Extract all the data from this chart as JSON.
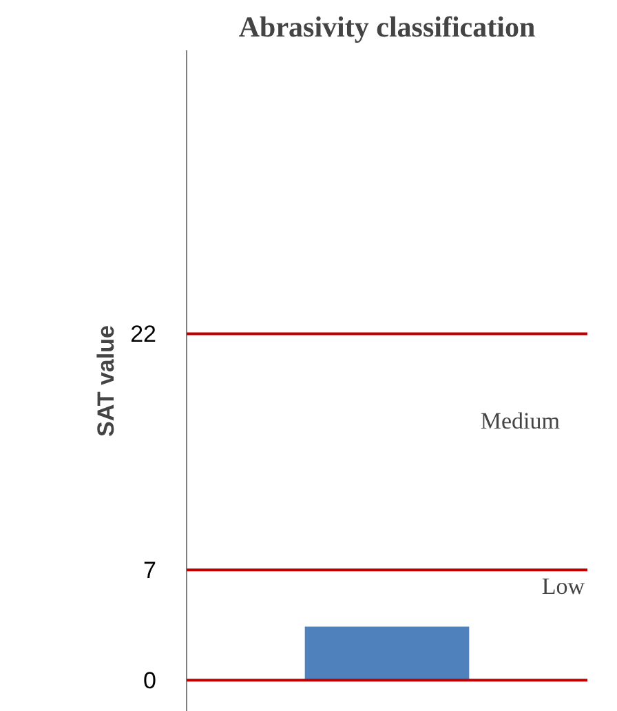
{
  "chart_data": {
    "type": "bar",
    "title": "Abrasivity classification",
    "ylabel": "SAT value",
    "categories": [
      null
    ],
    "values": [
      3.4
    ],
    "color": "#4f81bd",
    "ylim": [
      -2,
      40
    ],
    "yticks": [
      0,
      7,
      22
    ],
    "tick_labels": "y",
    "grid": false,
    "ref_lines": [
      {
        "axis": "y",
        "value": 0,
        "color": "#c00000"
      },
      {
        "axis": "y",
        "value": 7,
        "color": "#c00000"
      },
      {
        "axis": "y",
        "value": 22,
        "color": "#c00000"
      }
    ],
    "annotations": [
      "Low",
      "Medium"
    ]
  }
}
